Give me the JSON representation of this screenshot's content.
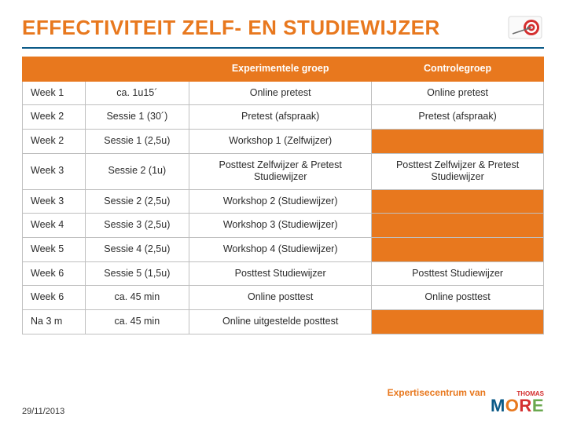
{
  "title": "EFFECTIVITEIT ZELF- EN STUDIEWIJZER",
  "date": "29/11/2013",
  "brand_label": "Expertisecentrum van",
  "brand_sup": "THOMAS",
  "brand_logo": {
    "m": "M",
    "o1": "O",
    "r": "R",
    "e": "E"
  },
  "table": {
    "headers": [
      "",
      "",
      "Experimentele groep",
      "Controlegroep"
    ],
    "rows": [
      {
        "week": "Week 1",
        "sessie": "ca. 1u15´",
        "exp": "Online pretest",
        "ctrl": "Online pretest",
        "ctrl_highlight": false
      },
      {
        "week": "Week 2",
        "sessie": "Sessie 1 (30´)",
        "exp": "Pretest (afspraak)",
        "ctrl": "Pretest (afspraak)",
        "ctrl_highlight": false
      },
      {
        "week": "Week 2",
        "sessie": "Sessie 1 (2,5u)",
        "exp": "Workshop 1 (Zelfwijzer)",
        "ctrl": "",
        "ctrl_highlight": true
      },
      {
        "week": "Week 3",
        "sessie": "Sessie 2 (1u)",
        "exp": "Posttest Zelfwijzer & Pretest Studiewijzer",
        "ctrl": "Posttest Zelfwijzer & Pretest Studiewijzer",
        "ctrl_highlight": false
      },
      {
        "week": "Week 3",
        "sessie": "Sessie 2 (2,5u)",
        "exp": "Workshop 2 (Studiewijzer)",
        "ctrl": "",
        "ctrl_highlight": true
      },
      {
        "week": "Week 4",
        "sessie": "Sessie 3 (2,5u)",
        "exp": "Workshop 3 (Studiewijzer)",
        "ctrl": "",
        "ctrl_highlight": true
      },
      {
        "week": "Week 5",
        "sessie": "Sessie 4 (2,5u)",
        "exp": "Workshop 4 (Studiewijzer)",
        "ctrl": "",
        "ctrl_highlight": true
      },
      {
        "week": "Week 6",
        "sessie": "Sessie 5 (1,5u)",
        "exp": "Posttest Studiewijzer",
        "ctrl": "Posttest Studiewijzer",
        "ctrl_highlight": false
      },
      {
        "week": "Week 6",
        "sessie": "ca. 45 min",
        "exp": "Online posttest",
        "ctrl": "Online posttest",
        "ctrl_highlight": false
      },
      {
        "week": "Na 3 m",
        "sessie": "ca. 45 min",
        "exp": "Online uitgestelde posttest",
        "ctrl": "",
        "ctrl_highlight": true
      }
    ]
  }
}
